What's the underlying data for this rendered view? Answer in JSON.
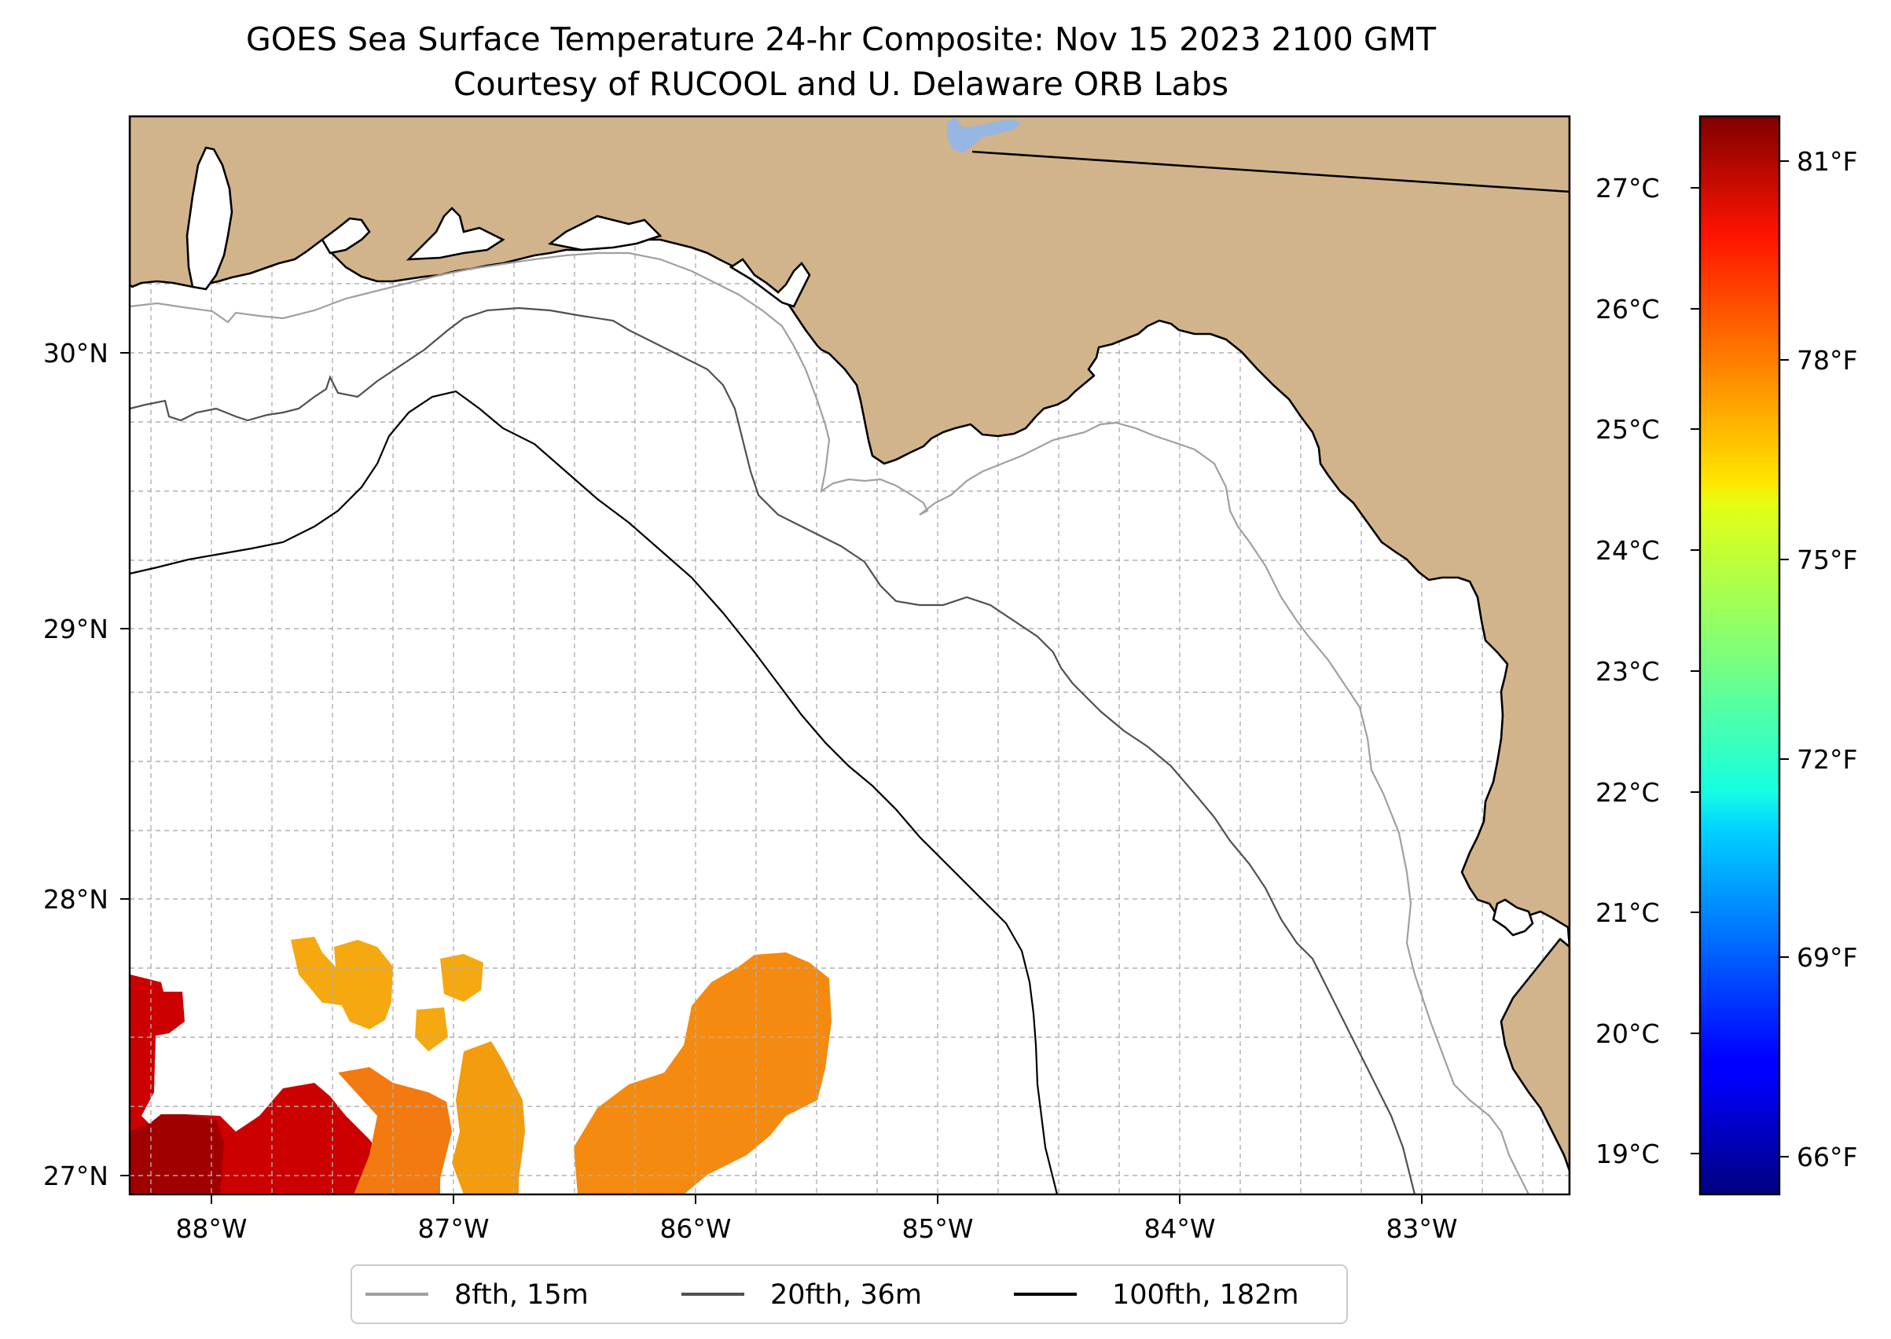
{
  "title": "GOES Sea Surface Temperature 24-hr Composite: Nov 15 2023 2100 GMT",
  "subtitle": "Courtesy of RUCOOL and U. Delaware ORB Labs",
  "map": {
    "lon_range": [
      -88.33,
      -82.38
    ],
    "lat_range": [
      26.93,
      30.85
    ],
    "lon_tick_labels": [
      "88°W",
      "87°W",
      "86°W",
      "85°W",
      "84°W",
      "83°W"
    ],
    "lat_tick_labels": [
      "27°N",
      "28°N",
      "29°N",
      "30°N"
    ],
    "gridlines": "dashed",
    "land_color": "#d2b48c",
    "lake_color": "#97b6e1"
  },
  "colorbar": {
    "colormap": "jet",
    "celsius_labels": [
      "27°C",
      "26°C",
      "25°C",
      "24°C",
      "23°C",
      "22°C",
      "21°C",
      "20°C",
      "19°C"
    ],
    "celsius_range": [
      18.6,
      27.5
    ],
    "fahrenheit_labels": [
      "81°F",
      "78°F",
      "75°F",
      "72°F",
      "69°F",
      "66°F"
    ]
  },
  "legend": {
    "placement": "bottom-center",
    "items": [
      {
        "label": "8fth, 15m",
        "color": "#a0a0a0"
      },
      {
        "label": "20fth, 36m",
        "color": "#505050"
      },
      {
        "label": "100fth, 182m",
        "color": "#000000"
      }
    ]
  },
  "sst_patches": [
    {
      "region": "southwest corner",
      "approx_temp_f": 80
    },
    {
      "region": "south of 87.5W",
      "approx_temp_f": 79
    },
    {
      "region": "near 87.1W 27.5N",
      "approx_temp_f": 77
    },
    {
      "region": "near 86.0W 27.3N",
      "approx_temp_f": 78
    }
  ]
}
